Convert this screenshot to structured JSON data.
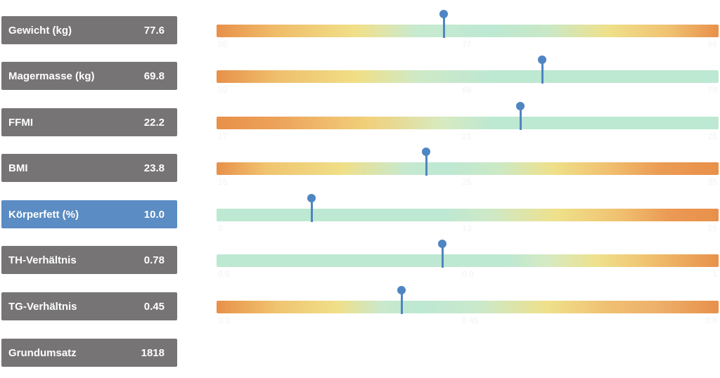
{
  "colors": {
    "label_bg": "#767475",
    "label_active_bg": "#5b8cc3",
    "marker": "#4f85c2",
    "orange": "#e8904a",
    "yellow": "#efe08a",
    "green": "#bde8d2"
  },
  "metrics": [
    {
      "label": "Gewicht (kg)",
      "value": "77.6",
      "marker_frac": 0.453,
      "gradient": "linear-gradient(to right,#e8904a 0%,#f0bd6a 12%,#f1e08a 28%,#c7ead0 40%,#bde8d2 55%,#c9e8c6 66%,#efe08a 78%,#f0c272 90%,#e8904a 100%)",
      "ticks": [
        "55",
        "77",
        "99"
      ]
    },
    {
      "label": "Magermasse (kg)",
      "value": "69.8",
      "marker_frac": 0.648,
      "gradient": "linear-gradient(to right,#e8904a 0%,#efbf6c 12%,#f0df86 28%,#cfe9c6 40%,#bde8d2 55%,#bde8d2 100%)",
      "ticks": [
        "59",
        "69",
        "79"
      ]
    },
    {
      "label": "FFMI",
      "value": "22.2",
      "marker_frac": 0.605,
      "gradient": "linear-gradient(to right,#e8904a 0%,#eca25a 12%,#f1d07a 30%,#d7eac0 45%,#bde8d2 55%,#bde8d2 100%)",
      "ticks": [
        "17",
        "21",
        "25"
      ]
    },
    {
      "label": "BMI",
      "value": "23.8",
      "marker_frac": 0.418,
      "gradient": "linear-gradient(to right,#e8904a 0%,#f0c470 10%,#f0df88 25%,#c5e9d0 38%,#bde8d2 46%,#cbe9c6 56%,#efe08a 67%,#f0c070 78%,#eb9c55 88%,#e8904a 100%)",
      "ticks": [
        "15",
        "25",
        "35"
      ]
    },
    {
      "label": "Körperfett (%)",
      "value": "10.0",
      "marker_frac": 0.189,
      "active": true,
      "gradient": "linear-gradient(to right,#bde8d2 0%,#bde8d2 45%,#cfe9c6 55%,#efe08a 68%,#f0c270 80%,#eb9a55 90%,#e8904a 100%)",
      "ticks": [
        "0",
        "13",
        "25"
      ]
    },
    {
      "label": "TH-Verhältnis",
      "value": "0.78",
      "marker_frac": 0.45,
      "gradient": "linear-gradient(to right,#bde8d2 0%,#bde8d2 58%,#d6eac2 66%,#efe08a 76%,#f0c270 86%,#e8904a 100%)",
      "ticks": [
        "0.5",
        "0.8",
        "1"
      ]
    },
    {
      "label": "TG-Verhältnis",
      "value": "0.45",
      "marker_frac": 0.369,
      "gradient": "linear-gradient(to right,#e8904a 0%,#f0c470 12%,#f0df88 24%,#c9e9cc 33%,#bde8d2 40%,#c9e9cc 52%,#efe08a 66%,#f0c072 78%,#edb06a 88%,#e8904a 100%)",
      "ticks": [
        "0.3",
        "0.45",
        "0.6"
      ]
    },
    {
      "label": "Grundumsatz",
      "value": "1818",
      "marker_frac": null,
      "gradient": null,
      "ticks": []
    }
  ]
}
